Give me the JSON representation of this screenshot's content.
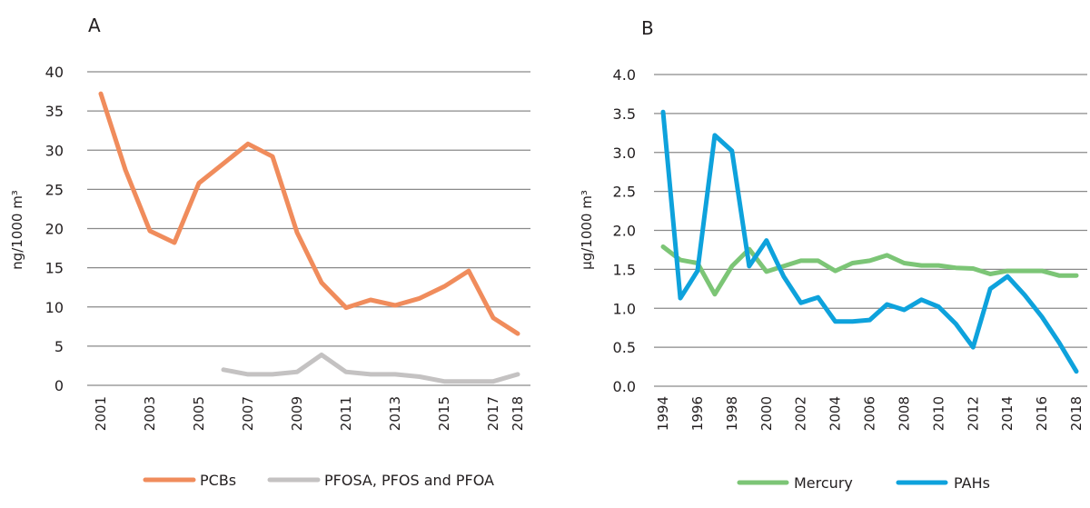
{
  "chart_data": [
    {
      "type": "line",
      "panel": "A",
      "title": "A",
      "xlabel": "",
      "ylabel": "ng/1000 m³",
      "ylim": [
        0,
        40
      ],
      "yticks": [
        "0",
        "5",
        "10",
        "15",
        "20",
        "25",
        "30",
        "35",
        "40"
      ],
      "xlim": [
        2001,
        2018
      ],
      "xticks": [
        "2001",
        "2003",
        "2005",
        "2007",
        "2009",
        "2011",
        "2013",
        "2015",
        "2017",
        "2018"
      ],
      "grid": true,
      "legend_position": "bottom",
      "series": [
        {
          "name": "PCBs",
          "color": "#f08c5c",
          "x": [
            2001,
            2002,
            2003,
            2004,
            2005,
            2006,
            2007,
            2008,
            2009,
            2010,
            2011,
            2012,
            2013,
            2014,
            2015,
            2016,
            2017,
            2018
          ],
          "values": [
            37.2,
            27.5,
            19.7,
            18.2,
            25.8,
            28.3,
            30.8,
            29.2,
            19.5,
            13.1,
            9.9,
            10.9,
            10.2,
            11.1,
            12.6,
            14.6,
            8.6,
            6.6
          ]
        },
        {
          "name": "PFOSA, PFOS and PFOA",
          "color": "#c4c2c2",
          "x": [
            2006,
            2007,
            2008,
            2009,
            2010,
            2011,
            2012,
            2013,
            2014,
            2015,
            2016,
            2017,
            2018
          ],
          "values": [
            2.0,
            1.4,
            1.4,
            1.7,
            3.9,
            1.7,
            1.4,
            1.4,
            1.1,
            0.5,
            0.5,
            0.5,
            1.4
          ]
        }
      ]
    },
    {
      "type": "line",
      "panel": "B",
      "title": "B",
      "xlabel": "",
      "ylabel": "µg/1000 m³",
      "ylim": [
        0,
        4.0
      ],
      "yticks": [
        "0.0",
        "0.5",
        "1.0",
        "1.5",
        "2.0",
        "2.5",
        "3.0",
        "3.5",
        "4.0"
      ],
      "xlim": [
        1994,
        2018
      ],
      "xticks": [
        "1994",
        "1996",
        "1998",
        "2000",
        "2002",
        "2004",
        "2006",
        "2008",
        "2010",
        "2012",
        "2014",
        "2016",
        "2018"
      ],
      "grid": true,
      "legend_position": "bottom",
      "series": [
        {
          "name": "Mercury",
          "color": "#7cc576",
          "x": [
            1994,
            1995,
            1996,
            1997,
            1998,
            1999,
            2000,
            2001,
            2002,
            2003,
            2004,
            2005,
            2006,
            2007,
            2008,
            2009,
            2010,
            2011,
            2012,
            2013,
            2014,
            2015,
            2016,
            2017,
            2018
          ],
          "values": [
            1.79,
            1.62,
            1.58,
            1.18,
            1.54,
            1.76,
            1.47,
            1.54,
            1.61,
            1.61,
            1.48,
            1.58,
            1.61,
            1.68,
            1.58,
            1.55,
            1.55,
            1.52,
            1.51,
            1.44,
            1.48,
            1.48,
            1.48,
            1.42,
            1.42
          ]
        },
        {
          "name": "PAHs",
          "color": "#0ea2dc",
          "x": [
            1994,
            1995,
            1996,
            1997,
            1998,
            1999,
            2000,
            2001,
            2002,
            2003,
            2004,
            2005,
            2006,
            2007,
            2008,
            2009,
            2010,
            2011,
            2012,
            2013,
            2014,
            2015,
            2016,
            2017,
            2018
          ],
          "values": [
            3.52,
            1.13,
            1.48,
            3.22,
            3.02,
            1.54,
            1.87,
            1.41,
            1.07,
            1.14,
            0.83,
            0.83,
            0.85,
            1.05,
            0.98,
            1.11,
            1.02,
            0.8,
            0.5,
            1.25,
            1.41,
            1.17,
            0.89,
            0.56,
            0.19
          ]
        }
      ]
    }
  ]
}
